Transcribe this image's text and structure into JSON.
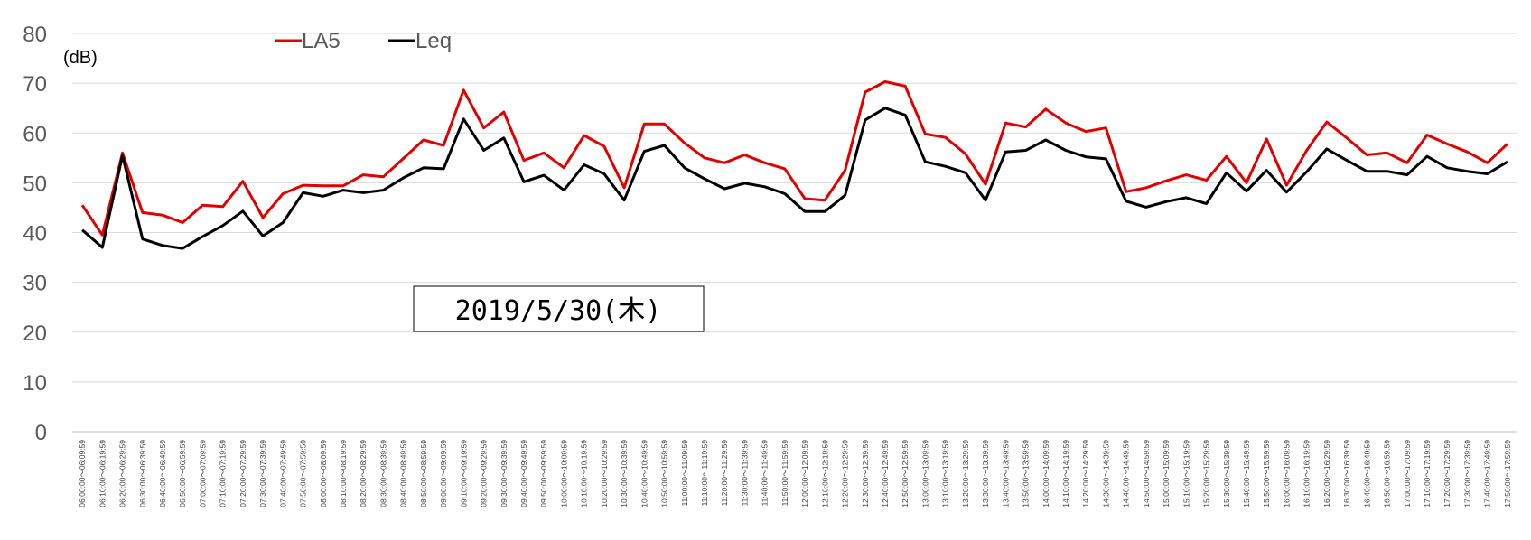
{
  "chart_data": {
    "type": "line",
    "ylim": [
      0,
      80
    ],
    "yticks": [
      0,
      10,
      20,
      30,
      40,
      50,
      60,
      70,
      80
    ],
    "unit_label": "(dB)",
    "annotation": "2019/5/30(木)",
    "grid": true,
    "legend_position": "top-left",
    "categories": [
      "06:00:00～06:09:59",
      "06:10:00～06:19:59",
      "06:20:00～06:29:59",
      "06:30:00～06:39:59",
      "06:40:00～06:49:59",
      "06:50:00～06:59:59",
      "07:00:00～07:09:59",
      "07:10:00～07:19:59",
      "07:20:00～07:29:59",
      "07:30:00～07:39:59",
      "07:40:00～07:49:59",
      "07:50:00～07:59:59",
      "08:00:00～08:09:59",
      "08:10:00～08:19:59",
      "08:20:00～08:29:59",
      "08:30:00～08:39:59",
      "08:40:00～08:49:59",
      "08:50:00～08:59:59",
      "09:00:00～09:09:59",
      "09:10:00～09:19:59",
      "09:20:00～09:29:59",
      "09:30:00～09:39:59",
      "09:40:00～09:49:59",
      "09:50:00～09:59:59",
      "10:00:00～10:09:59",
      "10:10:00～10:19:59",
      "10:20:00～10:29:59",
      "10:30:00～10:39:59",
      "10:40:00～10:49:59",
      "10:50:00～10:59:59",
      "11:00:00～11:09:59",
      "11:10:00～11:19:59",
      "11:20:00～11:29:59",
      "11:30:00～11:39:59",
      "11:40:00～11:49:59",
      "11:50:00～11:59:59",
      "12:00:00～12:09:59",
      "12:10:00～12:19:59",
      "12:20:00～12:29:59",
      "12:30:00～12:39:59",
      "12:40:00～12:49:59",
      "12:50:00～12:59:59",
      "13:00:00～13:09:59",
      "13:10:00～13:19:59",
      "13:20:00～13:29:59",
      "13:30:00～13:39:59",
      "13:40:00～13:49:59",
      "13:50:00～13:59:59",
      "14:00:00～14:09:59",
      "14:10:00～14:19:59",
      "14:20:00～14:29:59",
      "14:30:00～14:39:59",
      "14:40:00～14:49:59",
      "14:50:00～14:59:59",
      "15:00:00～15:09:59",
      "15:10:00～15:19:59",
      "15:20:00～15:29:59",
      "15:30:00～15:39:59",
      "15:40:00～15:49:59",
      "15:50:00～15:59:59",
      "16:00:00～16:09:59",
      "16:10:00～16:19:59",
      "16:20:00～16:29:59",
      "16:30:00～16:39:59",
      "16:40:00～16:49:59",
      "16:50:00～16:59:59",
      "17:00:00～17:09:59",
      "17:10:00～17:19:59",
      "17:20:00～17:29:59",
      "17:30:00～17:39:59",
      "17:40:00～17:49:59",
      "17:50:00～17:59:59"
    ],
    "series": [
      {
        "name": "LA5",
        "color": "#e00000",
        "values": [
          45.5,
          39.5,
          56,
          44,
          43.5,
          42,
          45.5,
          45.2,
          50.3,
          43,
          47.8,
          49.5,
          49.4,
          49.4,
          51.6,
          51.2,
          54.9,
          58.6,
          57.5,
          68.6,
          61,
          64.2,
          54.5,
          56,
          53,
          59.5,
          57.3,
          49,
          61.8,
          61.8,
          58,
          55,
          54,
          55.6,
          54,
          52.8,
          46.8,
          46.5,
          52.5,
          68.2,
          70.3,
          69.4,
          59.8,
          59.1,
          55.8,
          49.7,
          62,
          61.2,
          64.8,
          62,
          60.3,
          61,
          48.2,
          49,
          50.4,
          51.6,
          50.5,
          55.3,
          50,
          58.8,
          49.5,
          56.5,
          62.2,
          59,
          55.6,
          56,
          54,
          59.6,
          57.8,
          56.2,
          54,
          57.8
        ]
      },
      {
        "name": "Leq",
        "color": "#000000",
        "values": [
          40.5,
          37,
          55.5,
          38.7,
          37.4,
          36.8,
          39.2,
          41.4,
          44.3,
          39.3,
          42,
          48,
          47.3,
          48.5,
          48,
          48.5,
          51,
          53,
          52.8,
          62.8,
          56.5,
          59,
          50.2,
          51.5,
          48.5,
          53.6,
          51.8,
          46.5,
          56.3,
          57.5,
          53,
          50.8,
          48.8,
          49.9,
          49.2,
          47.8,
          44.2,
          44.2,
          47.5,
          62.6,
          65,
          63.6,
          54.2,
          53.3,
          52,
          46.5,
          56.2,
          56.5,
          58.6,
          56.5,
          55.2,
          54.8,
          46.3,
          45.1,
          46.2,
          47,
          45.8,
          52,
          48.3,
          52.5,
          48.1,
          52.2,
          56.8,
          54.5,
          52.3,
          52.3,
          51.6,
          55.3,
          53,
          52.3,
          51.8,
          54.2
        ]
      }
    ]
  }
}
